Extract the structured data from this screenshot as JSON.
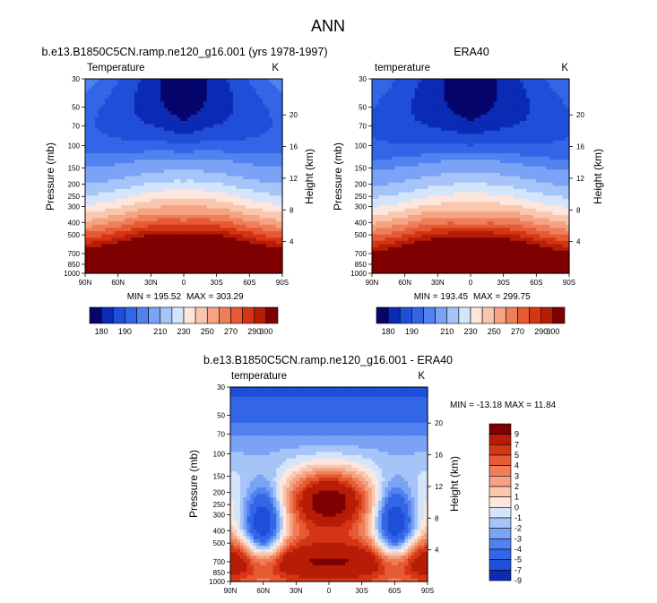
{
  "figure": {
    "title": "ANN"
  },
  "colors": {
    "blue_to_red": [
      "#05056b",
      "#0b2bb5",
      "#1f4ed8",
      "#3266e6",
      "#5282ef",
      "#7aa2f5",
      "#a6c4f8",
      "#d4e4fb",
      "#fde7dc",
      "#f9c7ae",
      "#f5a383",
      "#ef7e59",
      "#e65a34",
      "#d43615",
      "#b71c07",
      "#7f0000"
    ]
  },
  "chart_data": [
    {
      "id": "model",
      "type": "heatmap",
      "subtype": "filled-contour",
      "title": "b.e13.B1850C5CN.ramp.ne120_g16.001 (yrs 1978-1997)",
      "left_label": "Temperature",
      "units": "K",
      "xlabel": "",
      "ylabel": "Pressure (mb)",
      "ylabel_right": "Height (km)",
      "x_ticks": [
        "90N",
        "60N",
        "30N",
        "0",
        "30S",
        "60S",
        "90S"
      ],
      "y_ticks": [
        30,
        50,
        70,
        100,
        150,
        200,
        250,
        300,
        400,
        500,
        700,
        850,
        1000
      ],
      "y_ticks_right": [
        20,
        16,
        12,
        8,
        4
      ],
      "ylim": [
        1000,
        30
      ],
      "y_scale": "log",
      "stats": {
        "min_label": "MIN = 195.52",
        "max_label": "MAX = 303.29"
      },
      "min": 195.52,
      "max": 303.29,
      "colorbar": {
        "orientation": "horizontal",
        "levels": [
          175,
          180,
          185,
          190,
          195,
          200,
          210,
          220,
          230,
          240,
          250,
          260,
          270,
          280,
          290,
          300
        ],
        "labels": [
          "180",
          "190",
          "210",
          "230",
          "250",
          "270",
          "290",
          "300"
        ]
      }
    },
    {
      "id": "obs",
      "type": "heatmap",
      "subtype": "filled-contour",
      "title": "ERA40",
      "left_label": "temperature",
      "units": "K",
      "xlabel": "",
      "ylabel": "Pressure (mb)",
      "ylabel_right": "Height (km)",
      "x_ticks": [
        "90N",
        "60N",
        "30N",
        "0",
        "30S",
        "60S",
        "90S"
      ],
      "y_ticks": [
        30,
        50,
        70,
        100,
        150,
        200,
        250,
        300,
        400,
        500,
        700,
        850,
        1000
      ],
      "y_ticks_right": [
        20,
        16,
        12,
        8,
        4
      ],
      "ylim": [
        1000,
        30
      ],
      "y_scale": "log",
      "stats": {
        "min_label": "MIN = 193.45",
        "max_label": "MAX = 299.75"
      },
      "min": 193.45,
      "max": 299.75,
      "colorbar": {
        "orientation": "horizontal",
        "levels": [
          175,
          180,
          185,
          190,
          195,
          200,
          210,
          220,
          230,
          240,
          250,
          260,
          270,
          280,
          290,
          300
        ],
        "labels": [
          "180",
          "190",
          "210",
          "230",
          "250",
          "270",
          "290",
          "300"
        ]
      }
    },
    {
      "id": "diff",
      "type": "heatmap",
      "subtype": "filled-contour",
      "title": "b.e13.B1850C5CN.ramp.ne120_g16.001 - ERA40",
      "left_label": "temperature",
      "units": "K",
      "xlabel": "",
      "ylabel": "Pressure (mb)",
      "ylabel_right": "Height (km)",
      "x_ticks": [
        "90N",
        "60N",
        "30N",
        "0",
        "30S",
        "60S",
        "90S"
      ],
      "y_ticks": [
        30,
        50,
        70,
        100,
        150,
        200,
        250,
        300,
        400,
        500,
        700,
        850,
        1000
      ],
      "y_ticks_right": [
        20,
        16,
        12,
        8,
        4
      ],
      "ylim": [
        1000,
        30
      ],
      "y_scale": "log",
      "stats": {
        "label": "MIN = -13.18  MAX =  11.84"
      },
      "min": -13.18,
      "max": 11.84,
      "colorbar": {
        "orientation": "vertical",
        "levels": [
          -9,
          -7,
          -5,
          -4,
          -3,
          -2,
          -1,
          0,
          1,
          2,
          3,
          4,
          5,
          7,
          9
        ],
        "labels": [
          "9",
          "7",
          "5",
          "4",
          "3",
          "2",
          "1",
          "0",
          "-1",
          "-2",
          "-3",
          "-4",
          "-5",
          "-7",
          "-9"
        ]
      }
    }
  ]
}
